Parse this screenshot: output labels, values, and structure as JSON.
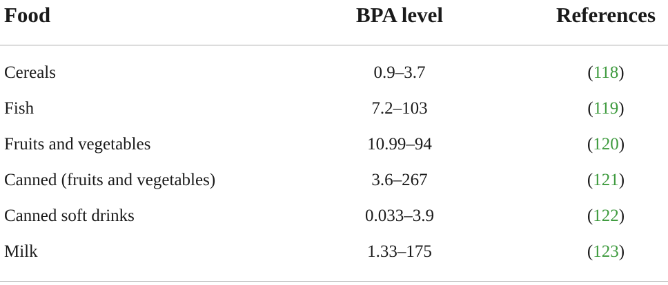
{
  "table": {
    "headers": {
      "food": "Food",
      "bpa_level": "BPA level",
      "references": "References"
    },
    "rows": [
      {
        "food": "Cereals",
        "bpa_level": "0.9–3.7",
        "reference": "118"
      },
      {
        "food": "Fish",
        "bpa_level": "7.2–103",
        "reference": "119"
      },
      {
        "food": "Fruits and vegetables",
        "bpa_level": "10.99–94",
        "reference": "120"
      },
      {
        "food": "Canned (fruits and vegetables)",
        "bpa_level": "3.6–267",
        "reference": "121"
      },
      {
        "food": "Canned soft drinks",
        "bpa_level": "0.033–3.9",
        "reference": "122"
      },
      {
        "food": "Milk",
        "bpa_level": "1.33–175",
        "reference": "123"
      }
    ],
    "colors": {
      "text": "#1a1a1a",
      "reference_link": "#3d9a3d",
      "rule": "#a8a8a8"
    }
  }
}
